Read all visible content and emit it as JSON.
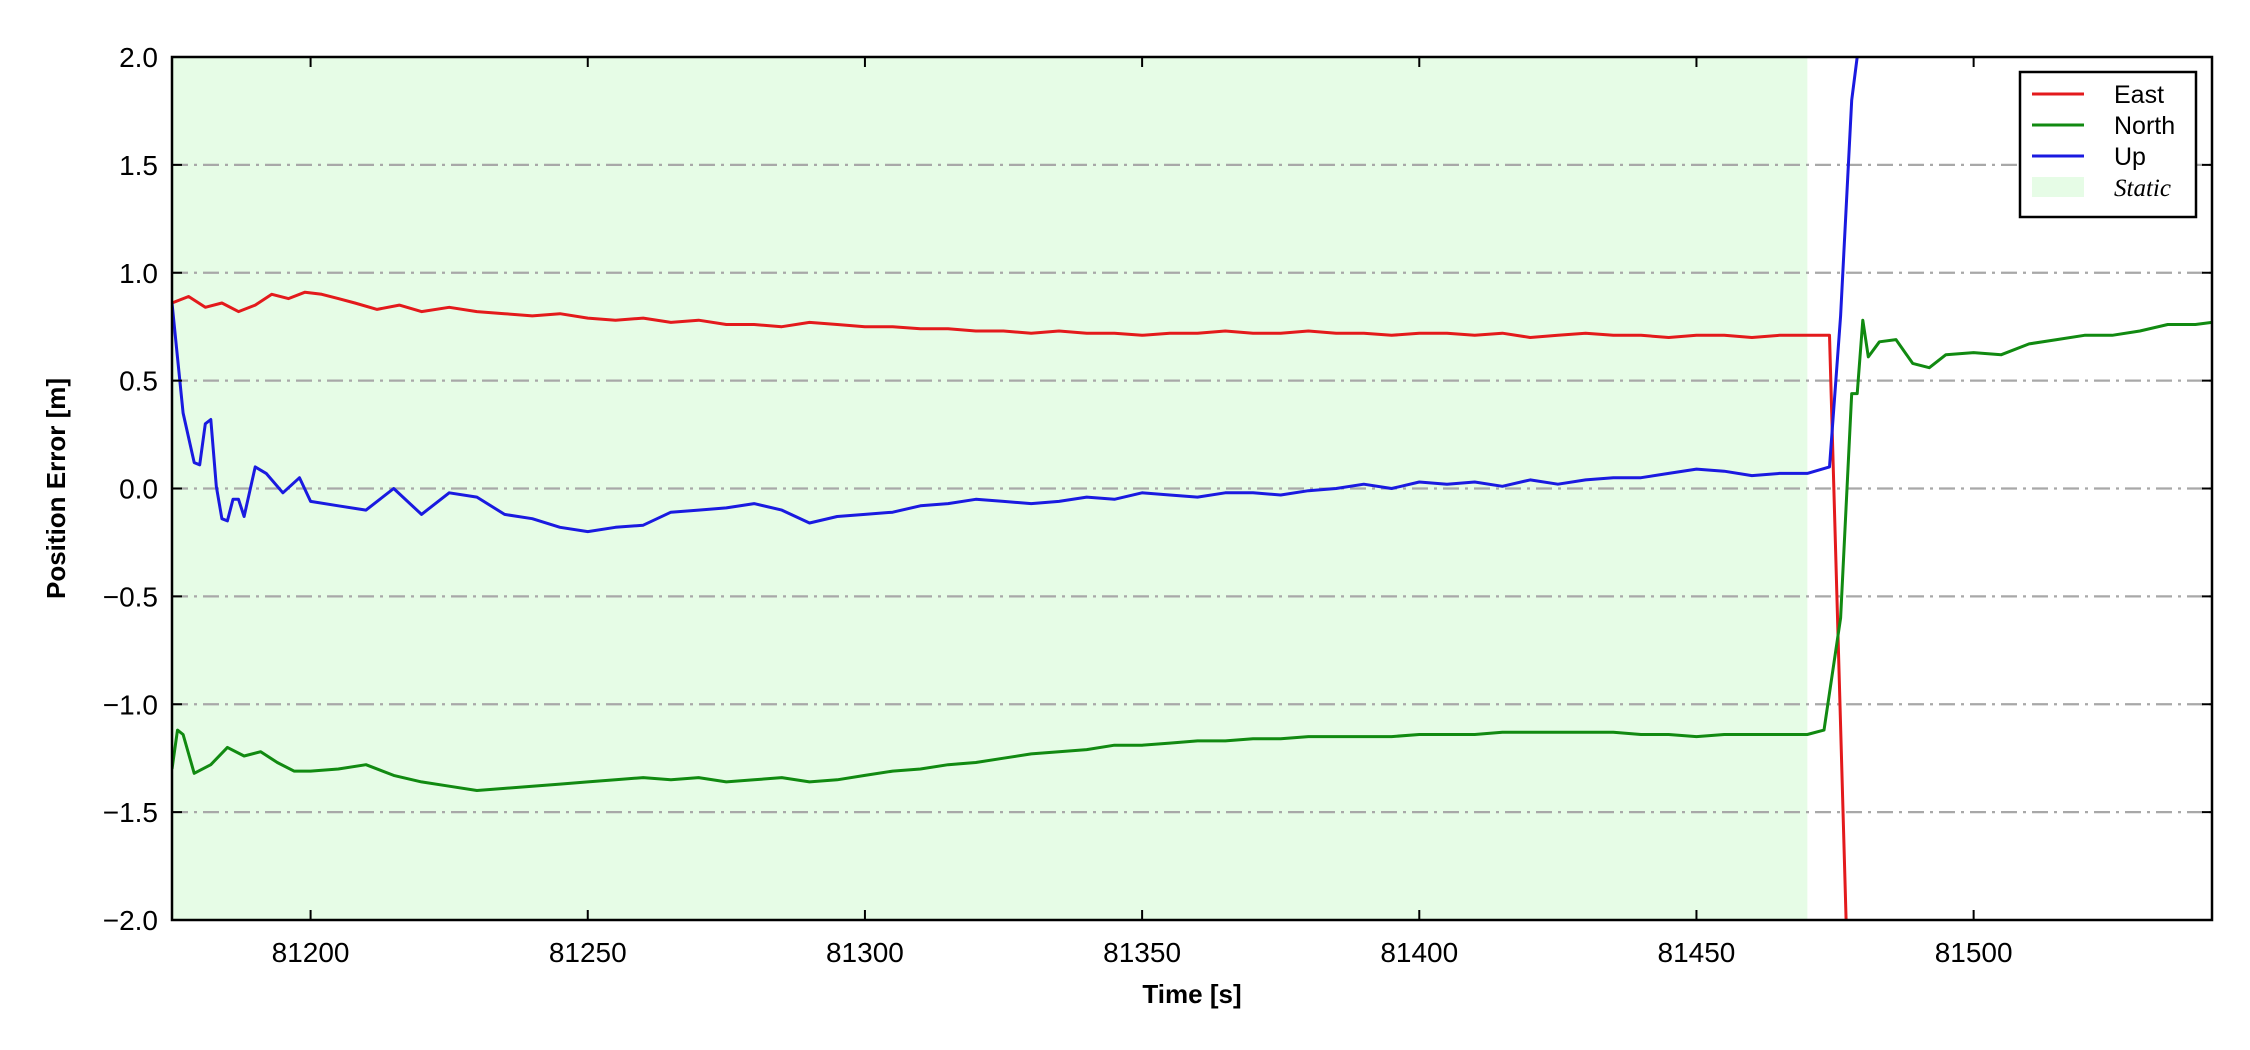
{
  "chart_data": {
    "type": "line",
    "xlabel": "Time [s]",
    "ylabel": "Position Error [m]",
    "xlim": [
      81175,
      81543
    ],
    "ylim": [
      -2.0,
      2.0
    ],
    "x_ticks": [
      81200,
      81250,
      81300,
      81350,
      81400,
      81450,
      81500
    ],
    "x_tick_labels": [
      "81200",
      "81250",
      "81300",
      "81350",
      "81400",
      "81450",
      "81500"
    ],
    "y_ticks": [
      2.0,
      1.5,
      1.0,
      0.5,
      0.0,
      -0.5,
      -1.0,
      -1.5,
      -2.0
    ],
    "y_tick_labels": [
      "2.0",
      "1.5",
      "1.0",
      "0.5",
      "0.0",
      "−0.5",
      "−1.0",
      "−1.5",
      "−2.0"
    ],
    "grid": "horizontal dash-dot",
    "legend_position": "top-right",
    "shaded_region": {
      "label": "Static",
      "x_range": [
        81175,
        81470
      ],
      "color": "#e6fce6"
    },
    "series": [
      {
        "name": "East",
        "color": "#e31a1c",
        "x": [
          81175,
          81178,
          81181,
          81184,
          81187,
          81190,
          81193,
          81196,
          81199,
          81202,
          81205,
          81208,
          81212,
          81216,
          81220,
          81225,
          81230,
          81235,
          81240,
          81245,
          81250,
          81255,
          81260,
          81265,
          81270,
          81275,
          81280,
          81285,
          81290,
          81295,
          81300,
          81305,
          81310,
          81315,
          81320,
          81325,
          81330,
          81335,
          81340,
          81345,
          81350,
          81355,
          81360,
          81365,
          81370,
          81375,
          81380,
          81385,
          81390,
          81395,
          81400,
          81405,
          81410,
          81415,
          81420,
          81425,
          81430,
          81435,
          81440,
          81445,
          81450,
          81455,
          81460,
          81465,
          81470,
          81474,
          81477
        ],
        "y": [
          0.86,
          0.89,
          0.84,
          0.86,
          0.82,
          0.85,
          0.9,
          0.88,
          0.91,
          0.9,
          0.88,
          0.86,
          0.83,
          0.85,
          0.82,
          0.84,
          0.82,
          0.81,
          0.8,
          0.81,
          0.79,
          0.78,
          0.79,
          0.77,
          0.78,
          0.76,
          0.76,
          0.75,
          0.77,
          0.76,
          0.75,
          0.75,
          0.74,
          0.74,
          0.73,
          0.73,
          0.72,
          0.73,
          0.72,
          0.72,
          0.71,
          0.72,
          0.72,
          0.73,
          0.72,
          0.72,
          0.73,
          0.72,
          0.72,
          0.71,
          0.72,
          0.72,
          0.71,
          0.72,
          0.7,
          0.71,
          0.72,
          0.71,
          0.71,
          0.7,
          0.71,
          0.71,
          0.7,
          0.71,
          0.71,
          0.71,
          -2.0
        ]
      },
      {
        "name": "North",
        "color": "#118a11",
        "x": [
          81175,
          81176,
          81177,
          81179,
          81182,
          81185,
          81188,
          81191,
          81194,
          81197,
          81200,
          81205,
          81210,
          81215,
          81220,
          81225,
          81230,
          81235,
          81240,
          81245,
          81250,
          81255,
          81260,
          81265,
          81270,
          81275,
          81280,
          81285,
          81290,
          81295,
          81300,
          81305,
          81310,
          81315,
          81320,
          81325,
          81330,
          81335,
          81340,
          81345,
          81350,
          81355,
          81360,
          81365,
          81370,
          81375,
          81380,
          81385,
          81390,
          81395,
          81400,
          81405,
          81410,
          81415,
          81420,
          81425,
          81430,
          81435,
          81440,
          81445,
          81450,
          81455,
          81460,
          81465,
          81470,
          81473,
          81476,
          81478,
          81479,
          81480,
          81481,
          81483,
          81486,
          81489,
          81492,
          81495,
          81500,
          81505,
          81510,
          81515,
          81520,
          81525,
          81530,
          81535,
          81540,
          81543
        ],
        "y": [
          -1.3,
          -1.12,
          -1.14,
          -1.32,
          -1.28,
          -1.2,
          -1.24,
          -1.22,
          -1.27,
          -1.31,
          -1.31,
          -1.3,
          -1.28,
          -1.33,
          -1.36,
          -1.38,
          -1.4,
          -1.39,
          -1.38,
          -1.37,
          -1.36,
          -1.35,
          -1.34,
          -1.35,
          -1.34,
          -1.36,
          -1.35,
          -1.34,
          -1.36,
          -1.35,
          -1.33,
          -1.31,
          -1.3,
          -1.28,
          -1.27,
          -1.25,
          -1.23,
          -1.22,
          -1.21,
          -1.19,
          -1.19,
          -1.18,
          -1.17,
          -1.17,
          -1.16,
          -1.16,
          -1.15,
          -1.15,
          -1.15,
          -1.15,
          -1.14,
          -1.14,
          -1.14,
          -1.13,
          -1.13,
          -1.13,
          -1.13,
          -1.13,
          -1.14,
          -1.14,
          -1.15,
          -1.14,
          -1.14,
          -1.14,
          -1.14,
          -1.12,
          -0.6,
          0.44,
          0.44,
          0.78,
          0.61,
          0.68,
          0.69,
          0.58,
          0.56,
          0.62,
          0.63,
          0.62,
          0.67,
          0.69,
          0.71,
          0.71,
          0.73,
          0.76,
          0.76,
          0.77
        ]
      },
      {
        "name": "Up",
        "color": "#1a1ae0",
        "x": [
          81175,
          81177,
          81179,
          81180,
          81181,
          81182,
          81183,
          81184,
          81185,
          81186,
          81187,
          81188,
          81190,
          81192,
          81195,
          81198,
          81200,
          81205,
          81210,
          81215,
          81220,
          81225,
          81230,
          81235,
          81240,
          81245,
          81250,
          81255,
          81260,
          81265,
          81270,
          81275,
          81280,
          81285,
          81290,
          81295,
          81300,
          81305,
          81310,
          81315,
          81320,
          81325,
          81330,
          81335,
          81340,
          81345,
          81350,
          81355,
          81360,
          81365,
          81370,
          81375,
          81380,
          81385,
          81390,
          81395,
          81400,
          81405,
          81410,
          81415,
          81420,
          81425,
          81430,
          81435,
          81440,
          81445,
          81450,
          81455,
          81460,
          81465,
          81470,
          81474,
          81476,
          81478,
          81479
        ],
        "y": [
          0.86,
          0.35,
          0.12,
          0.11,
          0.3,
          0.32,
          0.01,
          -0.14,
          -0.15,
          -0.05,
          -0.05,
          -0.13,
          0.1,
          0.07,
          -0.02,
          0.05,
          -0.06,
          -0.08,
          -0.1,
          0.0,
          -0.12,
          -0.02,
          -0.04,
          -0.12,
          -0.14,
          -0.18,
          -0.2,
          -0.18,
          -0.17,
          -0.11,
          -0.1,
          -0.09,
          -0.07,
          -0.1,
          -0.16,
          -0.13,
          -0.12,
          -0.11,
          -0.08,
          -0.07,
          -0.05,
          -0.06,
          -0.07,
          -0.06,
          -0.04,
          -0.05,
          -0.02,
          -0.03,
          -0.04,
          -0.02,
          -0.02,
          -0.03,
          -0.01,
          0.0,
          0.02,
          0.0,
          0.03,
          0.02,
          0.03,
          0.01,
          0.04,
          0.02,
          0.04,
          0.05,
          0.05,
          0.07,
          0.09,
          0.08,
          0.06,
          0.07,
          0.07,
          0.1,
          0.8,
          1.8,
          2.0
        ]
      }
    ]
  }
}
